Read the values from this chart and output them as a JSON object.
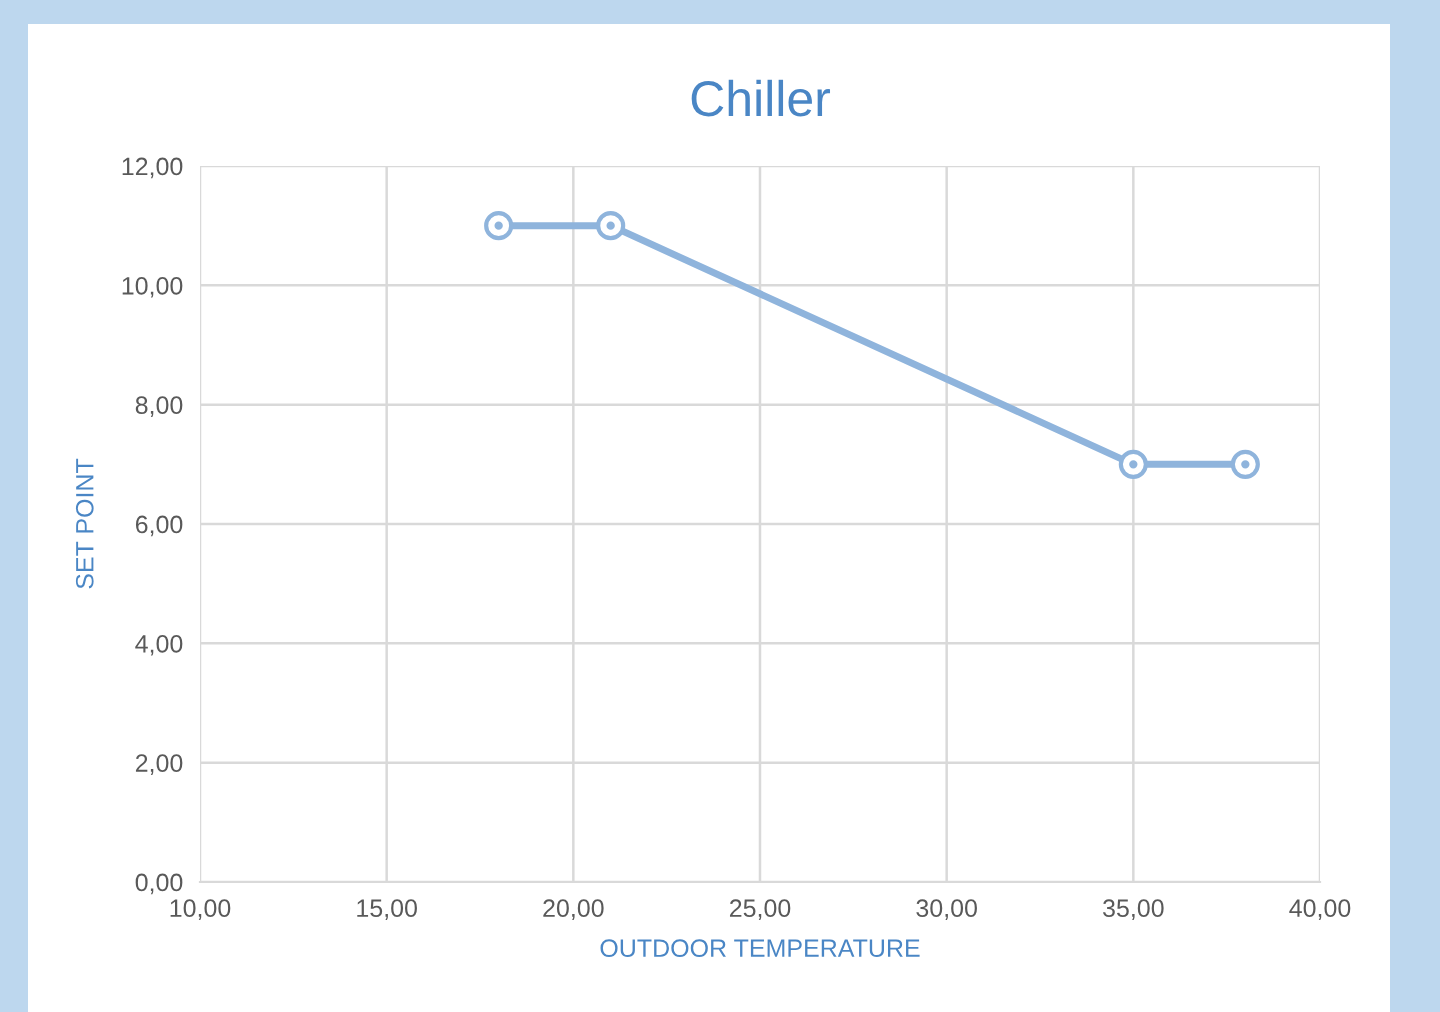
{
  "chart_data": {
    "type": "line",
    "title": "Chiller",
    "xlabel": "OUTDOOR TEMPERATURE",
    "ylabel": "SET POINT",
    "x": [
      18,
      21,
      35,
      38
    ],
    "series": [
      {
        "color": "#8fb4dc",
        "values": [
          11,
          11,
          7,
          7
        ]
      }
    ],
    "xlim": [
      10,
      40
    ],
    "xticks": [
      {
        "value": 10,
        "label": "10,00"
      },
      {
        "value": 15,
        "label": "15,00"
      },
      {
        "value": 20,
        "label": "20,00"
      },
      {
        "value": 25,
        "label": "25,00"
      },
      {
        "value": 30,
        "label": "30,00"
      },
      {
        "value": 35,
        "label": "35,00"
      },
      {
        "value": 40,
        "label": "40,00"
      }
    ],
    "ylim": [
      0,
      12
    ],
    "yticks": [
      {
        "value": 0,
        "label": "0,00"
      },
      {
        "value": 2,
        "label": "2,00"
      },
      {
        "value": 4,
        "label": "4,00"
      },
      {
        "value": 6,
        "label": "6,00"
      },
      {
        "value": 8,
        "label": "8,00"
      },
      {
        "value": 10,
        "label": "10,00"
      },
      {
        "value": 12,
        "label": "12,00"
      }
    ],
    "grid": true,
    "marker": "circle",
    "line_style": "solid"
  }
}
